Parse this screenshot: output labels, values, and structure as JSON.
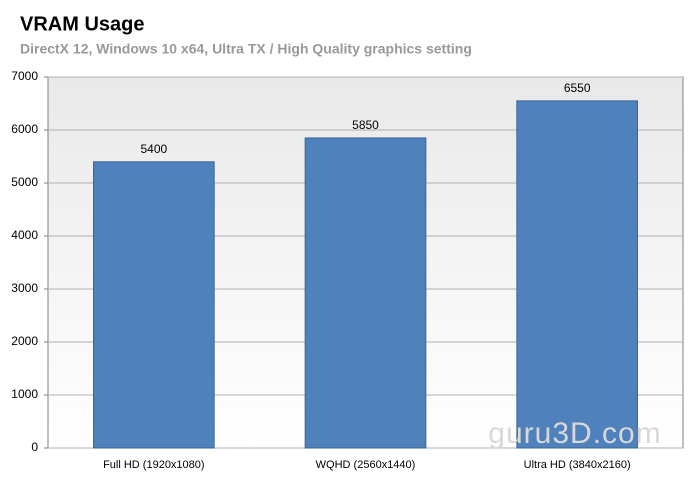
{
  "chart_data": {
    "type": "bar",
    "title": "VRAM Usage",
    "subtitle": "DirectX 12, Windows 10 x64, Ultra  TX / High Quality graphics setting",
    "categories": [
      "Full HD (1920x1080)",
      "WQHD (2560x1440)",
      "Ultra HD (3840x2160)"
    ],
    "values": [
      5400,
      5850,
      6550
    ],
    "color": "#4f81bd",
    "ylim": [
      0,
      7000
    ],
    "yticks": [
      0,
      1000,
      2000,
      3000,
      4000,
      5000,
      6000,
      7000
    ],
    "grid": true,
    "watermark": "guru3D.com"
  }
}
